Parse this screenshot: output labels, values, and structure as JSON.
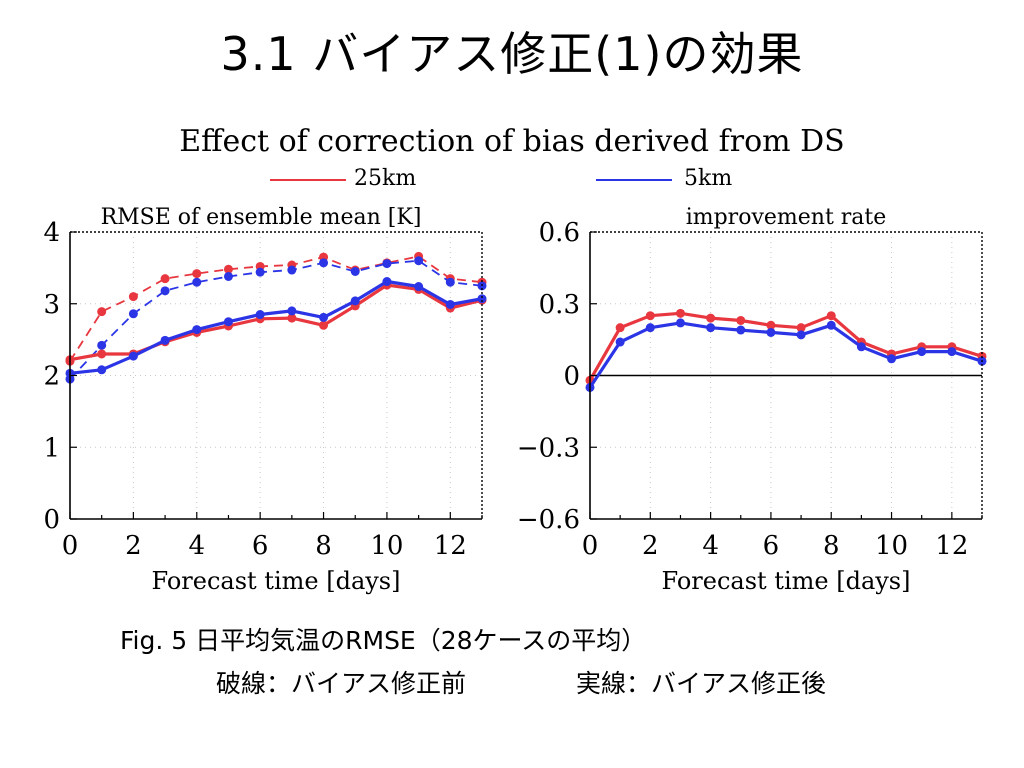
{
  "page": {
    "title": "3.1 バイアス修正(1)の効果",
    "figure_title": "Effect of correction of bias derived from DS",
    "caption_line1": "Fig. 5 日平均気温のRMSE（28ケースの平均）",
    "caption_line2_left": "破線：バイアス修正前",
    "caption_line2_right": "実線：バイアス修正後"
  },
  "legend": [
    {
      "name": "25km",
      "color": "#e8373f"
    },
    {
      "name": "5km",
      "color": "#2b35e6"
    }
  ],
  "colors": {
    "red": "#e8373f",
    "blue": "#2b35e6"
  },
  "chart_data": [
    {
      "type": "line",
      "title": "RMSE of ensemble mean [K]",
      "xlabel": "Forecast time [days]",
      "ylabel": "",
      "xlim": [
        0,
        13
      ],
      "ylim": [
        0,
        4
      ],
      "xticks": [
        0,
        2,
        4,
        6,
        8,
        10,
        12
      ],
      "yticks": [
        0,
        1,
        2,
        3,
        4
      ],
      "ytick_labels": [
        "0",
        "1",
        "2",
        "3",
        "4"
      ],
      "grid": true,
      "x": [
        0,
        1,
        2,
        3,
        4,
        5,
        6,
        7,
        8,
        9,
        10,
        11,
        12,
        13
      ],
      "series": [
        {
          "name": "25km",
          "style": "dashed",
          "color": "#e8373f",
          "values": [
            2.2,
            2.89,
            3.1,
            3.35,
            3.42,
            3.48,
            3.52,
            3.54,
            3.65,
            3.47,
            3.57,
            3.66,
            3.35,
            3.3
          ]
        },
        {
          "name": "5km",
          "style": "dashed",
          "color": "#2b35e6",
          "values": [
            1.95,
            2.42,
            2.86,
            3.18,
            3.3,
            3.38,
            3.44,
            3.47,
            3.57,
            3.45,
            3.56,
            3.6,
            3.3,
            3.25
          ]
        },
        {
          "name": "25km",
          "style": "solid",
          "color": "#e8373f",
          "values": [
            2.22,
            2.3,
            2.3,
            2.47,
            2.6,
            2.69,
            2.79,
            2.8,
            2.7,
            2.97,
            3.26,
            3.2,
            2.94,
            3.05
          ]
        },
        {
          "name": "5km",
          "style": "solid",
          "color": "#2b35e6",
          "values": [
            2.03,
            2.08,
            2.27,
            2.49,
            2.64,
            2.75,
            2.85,
            2.9,
            2.81,
            3.04,
            3.31,
            3.24,
            2.99,
            3.07
          ]
        }
      ]
    },
    {
      "type": "line",
      "title": "improvement rate",
      "xlabel": "Forecast time [days]",
      "ylabel": "",
      "xlim": [
        0,
        13
      ],
      "ylim": [
        -0.6,
        0.6
      ],
      "xticks": [
        0,
        2,
        4,
        6,
        8,
        10,
        12
      ],
      "yticks": [
        -0.6,
        -0.3,
        0,
        0.3,
        0.6
      ],
      "ytick_labels": [
        "−0.6",
        "−0.3",
        "0",
        "0.3",
        "0.6"
      ],
      "zero_line": true,
      "grid": true,
      "x": [
        0,
        1,
        2,
        3,
        4,
        5,
        6,
        7,
        8,
        9,
        10,
        11,
        12,
        13
      ],
      "series": [
        {
          "name": "25km",
          "style": "solid",
          "color": "#e8373f",
          "values": [
            -0.02,
            0.2,
            0.25,
            0.26,
            0.24,
            0.23,
            0.21,
            0.2,
            0.25,
            0.14,
            0.09,
            0.12,
            0.12,
            0.08
          ]
        },
        {
          "name": "5km",
          "style": "solid",
          "color": "#2b35e6",
          "values": [
            -0.05,
            0.14,
            0.2,
            0.22,
            0.2,
            0.19,
            0.18,
            0.17,
            0.21,
            0.12,
            0.07,
            0.1,
            0.1,
            0.06
          ]
        }
      ]
    }
  ]
}
